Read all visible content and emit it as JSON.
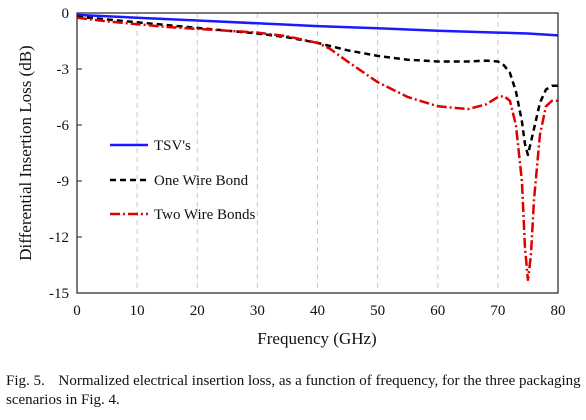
{
  "chart_data": {
    "type": "line",
    "xlabel": "Frequency  (GHz)",
    "ylabel": "Differential  Insertion Loss (dB)",
    "xlim": [
      0,
      80
    ],
    "ylim": [
      -15,
      0
    ],
    "xticks": [
      0,
      10,
      20,
      30,
      40,
      50,
      60,
      70,
      80
    ],
    "yticks": [
      0,
      -3,
      -6,
      -9,
      -12,
      -15
    ],
    "xtick_labels": [
      "0",
      "10",
      "20",
      "30",
      "40",
      "50",
      "60",
      "70",
      "80"
    ],
    "ytick_labels": [
      "0",
      "-3",
      "-6",
      "-9",
      "-12",
      "-15"
    ],
    "grid": "vertical dashed",
    "legend_position": "center-left",
    "series": [
      {
        "name": "TSV's",
        "color": "#1a1aff",
        "style": "solid",
        "x": [
          0,
          10,
          20,
          30,
          40,
          50,
          60,
          70,
          75,
          80
        ],
        "y": [
          -0.1,
          -0.25,
          -0.4,
          -0.55,
          -0.7,
          -0.82,
          -0.95,
          -1.05,
          -1.1,
          -1.2
        ]
      },
      {
        "name": "One Wire Bond",
        "color": "#000000",
        "style": "dashed",
        "x": [
          0,
          5,
          10,
          15,
          20,
          25,
          30,
          35,
          40,
          45,
          50,
          55,
          60,
          65,
          68,
          70,
          71,
          72,
          73,
          74,
          74.5,
          75,
          76,
          77,
          78,
          79,
          80
        ],
        "y": [
          -0.2,
          -0.35,
          -0.5,
          -0.65,
          -0.8,
          -0.95,
          -1.1,
          -1.3,
          -1.6,
          -2.0,
          -2.3,
          -2.5,
          -2.6,
          -2.6,
          -2.55,
          -2.6,
          -2.8,
          -3.2,
          -4.2,
          -5.8,
          -7.0,
          -7.6,
          -6.2,
          -4.8,
          -4.1,
          -3.9,
          -3.9
        ]
      },
      {
        "name": "Two Wire Bonds",
        "color": "#e00000",
        "style": "dashdot",
        "x": [
          0,
          5,
          10,
          15,
          20,
          25,
          30,
          35,
          40,
          42,
          45,
          50,
          55,
          60,
          65,
          68,
          70,
          71,
          72,
          73,
          74,
          74.5,
          75,
          75.5,
          76,
          77,
          78,
          79,
          80
        ],
        "y": [
          -0.25,
          -0.45,
          -0.6,
          -0.75,
          -0.85,
          -0.95,
          -1.05,
          -1.25,
          -1.6,
          -1.9,
          -2.6,
          -3.7,
          -4.5,
          -5.0,
          -5.15,
          -4.9,
          -4.5,
          -4.45,
          -4.7,
          -6.0,
          -9.0,
          -12.5,
          -14.3,
          -13.0,
          -10.0,
          -6.5,
          -5.0,
          -4.7,
          -4.7
        ]
      }
    ]
  },
  "caption": {
    "label": "Fig. 5.",
    "text": "Normalized electrical insertion loss, as a function of frequency, for the three packaging scenarios in Fig. 4."
  }
}
